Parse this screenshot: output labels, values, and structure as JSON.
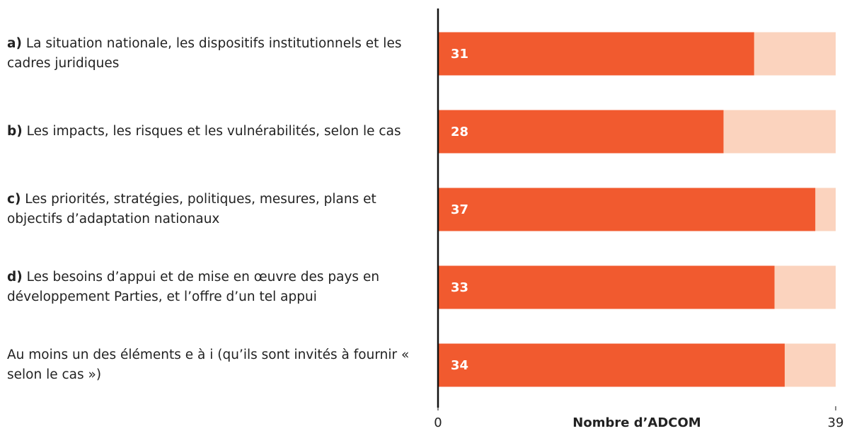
{
  "chart_data": {
    "type": "bar",
    "orientation": "horizontal",
    "categories": [
      "a) La situation nationale, les dispositifs institutionnels et les cadres juridiques",
      "b) Les impacts, les risques et les vulnérabilités, selon le cas",
      "c) Les priorités, stratégies, politiques, mesures, plans et objectifs d’adaptation nationaux",
      "d) Les besoins d’appui et de mise en œuvre des pays en développement Parties, et l’offre d’un tel appui",
      "Au moins un des éléments e à i (qu’ils sont invités à fournir « selon le cas »)"
    ],
    "values": [
      31,
      28,
      37,
      33,
      34
    ],
    "color": "#f15a2f",
    "track_color": "#fbd3be",
    "xlim": [
      0,
      39
    ],
    "xticks": [
      0,
      39
    ],
    "xlabel": "Nombre d’ADCOM"
  }
}
